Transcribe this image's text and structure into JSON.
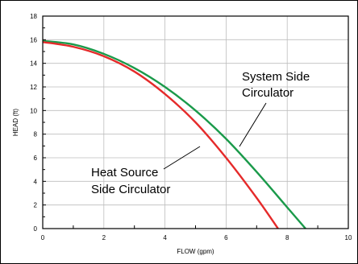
{
  "chart_data": {
    "type": "line",
    "title": "",
    "xlabel": "FLOW (gpm)",
    "ylabel": "HEAD (ft)",
    "xlim": [
      0,
      10
    ],
    "ylim": [
      0,
      18
    ],
    "x_ticks": [
      "0",
      "2",
      "4",
      "6",
      "8",
      "10"
    ],
    "y_ticks": [
      "0",
      "2",
      "4",
      "6",
      "8",
      "10",
      "12",
      "14",
      "16",
      "18"
    ],
    "grid": true,
    "legend": "none",
    "series": [
      {
        "name": "System Side Circulator",
        "color": "#1a9a4a",
        "x": [
          0,
          1,
          2,
          3,
          4,
          5,
          6,
          7,
          8,
          8.6
        ],
        "y": [
          15.9,
          15.6,
          14.8,
          13.6,
          12.0,
          10.0,
          7.6,
          4.8,
          1.8,
          0
        ]
      },
      {
        "name": "Heat Source Side Circulator",
        "color": "#e52a2a",
        "x": [
          0,
          1,
          2,
          3,
          4,
          5,
          6,
          7,
          7.7
        ],
        "y": [
          15.8,
          15.4,
          14.6,
          13.3,
          11.4,
          9.0,
          6.0,
          2.6,
          0
        ]
      }
    ],
    "annotations": [
      {
        "lines": [
          "System Side",
          "Circulator"
        ],
        "target_series": 0
      },
      {
        "lines": [
          "Heat Source",
          "Side Circulator"
        ],
        "target_series": 1
      }
    ]
  }
}
